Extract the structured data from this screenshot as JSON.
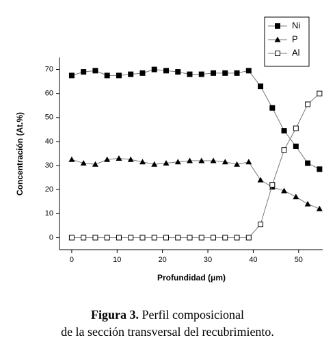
{
  "chart_data": {
    "type": "line",
    "xlabel": "Profundidad (μm)",
    "ylabel": "Concentración (At.%)",
    "caption_label": "Figura 3.",
    "caption_text": "Perfil composicional",
    "caption_line2": "de la sección transversal del recubrimiento.",
    "x": [
      0,
      2.6,
      5.2,
      7.8,
      10.4,
      13,
      15.6,
      18.2,
      20.8,
      23.4,
      26,
      28.6,
      31.2,
      33.8,
      36.4,
      39,
      41.6,
      44.2,
      46.8,
      49.4,
      52,
      54.6
    ],
    "series": [
      {
        "name": "Ni",
        "color": "#000000",
        "marker": "filled-square",
        "values": [
          67.5,
          69,
          69.5,
          67.5,
          67.5,
          68,
          68.5,
          70,
          69.5,
          69,
          68,
          68,
          68.5,
          68.5,
          68.5,
          69.5,
          63,
          54,
          44.5,
          38,
          31,
          28.5
        ]
      },
      {
        "name": "P",
        "color": "#000000",
        "marker": "filled-triangle",
        "values": [
          32.5,
          31,
          30.5,
          32.5,
          33,
          32.5,
          31.5,
          30.5,
          31,
          31.5,
          32,
          32,
          32,
          31.5,
          30.5,
          31.5,
          24,
          21,
          19.5,
          17,
          14,
          12
        ]
      },
      {
        "name": "Al",
        "color": "#000000",
        "marker": "open-square",
        "values": [
          0,
          0,
          0,
          0,
          0,
          0,
          0,
          0,
          0,
          0,
          0,
          0,
          0,
          0,
          0,
          0,
          5.5,
          22,
          36.5,
          45.5,
          55.5,
          60
        ]
      }
    ],
    "xlim": [
      -2.7,
      55.3
    ],
    "ylim": [
      -5,
      75
    ],
    "xticks": [
      0,
      10,
      20,
      30,
      40,
      50
    ],
    "yticks": [
      0,
      10,
      20,
      30,
      40,
      50,
      60,
      70
    ],
    "line_color": "#777777",
    "legend": "top-right"
  }
}
